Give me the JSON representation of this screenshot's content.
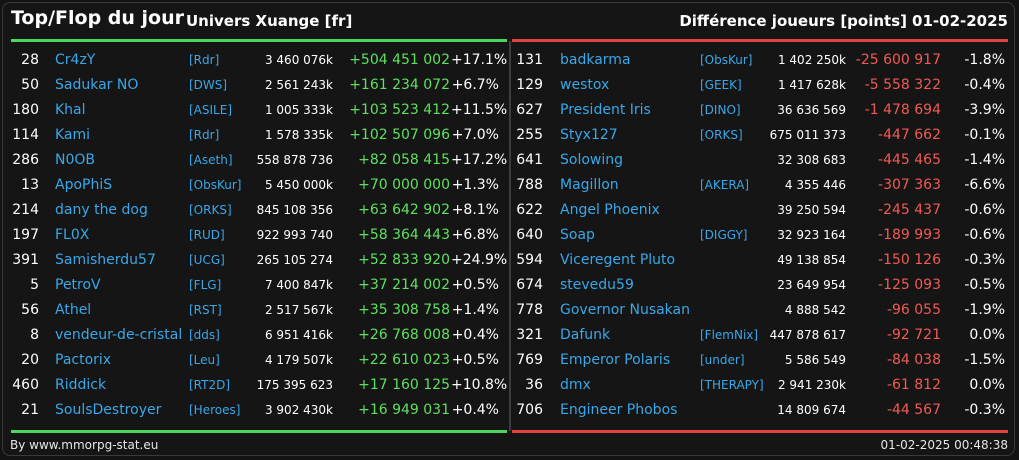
{
  "header": {
    "title": "Top/Flop du jour",
    "subtitle": "Univers Xuange [fr]",
    "metric": "Différence joueurs [points]",
    "date": "01-02-2025"
  },
  "colors": {
    "up": "#5ee05e",
    "down": "#f05a52",
    "name": "#39a7e8",
    "top_rule": "#4dd65b",
    "flop_rule": "#e0453f"
  },
  "top": [
    {
      "rank": "28",
      "name": "Cr4zY",
      "tag": "[Rdr]",
      "points": "3 460 076k",
      "diff": "+504 451 002",
      "pct": "+17.1%"
    },
    {
      "rank": "50",
      "name": "Sadukar NO",
      "tag": "[DWS]",
      "points": "2 561 243k",
      "diff": "+161 234 072",
      "pct": "+6.7%"
    },
    {
      "rank": "180",
      "name": "Khal",
      "tag": "[ASILE]",
      "points": "1 005 333k",
      "diff": "+103 523 412",
      "pct": "+11.5%"
    },
    {
      "rank": "114",
      "name": "Kami",
      "tag": "[Rdr]",
      "points": "1 578 335k",
      "diff": "+102 507 096",
      "pct": "+7.0%"
    },
    {
      "rank": "286",
      "name": "N0OB",
      "tag": "[Aseth]",
      "points": "558 878 736",
      "diff": "+82 058 415",
      "pct": "+17.2%"
    },
    {
      "rank": "13",
      "name": "ApoPhiS",
      "tag": "[ObsKur]",
      "points": "5 450 000k",
      "diff": "+70 000 000",
      "pct": "+1.3%"
    },
    {
      "rank": "214",
      "name": "dany the dog",
      "tag": "[ORKS]",
      "points": "845 108 356",
      "diff": "+63 642 902",
      "pct": "+8.1%"
    },
    {
      "rank": "197",
      "name": "FL0X",
      "tag": "[RUD]",
      "points": "922 993 740",
      "diff": "+58 364 443",
      "pct": "+6.8%"
    },
    {
      "rank": "391",
      "name": "Samisherdu57",
      "tag": "[UCG]",
      "points": "265 105 274",
      "diff": "+52 833 920",
      "pct": "+24.9%"
    },
    {
      "rank": "5",
      "name": "PetroV",
      "tag": "[FLG]",
      "points": "7 400 847k",
      "diff": "+37 214 002",
      "pct": "+0.5%"
    },
    {
      "rank": "56",
      "name": "Athel",
      "tag": "[RST]",
      "points": "2 517 567k",
      "diff": "+35 308 758",
      "pct": "+1.4%"
    },
    {
      "rank": "8",
      "name": "vendeur-de-cristal",
      "tag": "[dds]",
      "points": "6 951 416k",
      "diff": "+26 768 008",
      "pct": "+0.4%"
    },
    {
      "rank": "20",
      "name": "Pactorix",
      "tag": "[Leu]",
      "points": "4 179 507k",
      "diff": "+22 610 023",
      "pct": "+0.5%"
    },
    {
      "rank": "460",
      "name": "Riddick",
      "tag": "[RT2D]",
      "points": "175 395 623",
      "diff": "+17 160 125",
      "pct": "+10.8%"
    },
    {
      "rank": "21",
      "name": "SoulsDestroyer",
      "tag": "[Heroes]",
      "points": "3 902 430k",
      "diff": "+16 949 031",
      "pct": "+0.4%"
    }
  ],
  "flop": [
    {
      "rank": "131",
      "name": "badkarma",
      "tag": "[ObsKur]",
      "points": "1 402 250k",
      "diff": "-25 600 917",
      "pct": "-1.8%"
    },
    {
      "rank": "129",
      "name": "westox",
      "tag": "[GEEK]",
      "points": "1 417 628k",
      "diff": "-5 558 322",
      "pct": "-0.4%"
    },
    {
      "rank": "627",
      "name": "President Iris",
      "tag": "[DINO]",
      "points": "36 636 569",
      "diff": "-1 478 694",
      "pct": "-3.9%"
    },
    {
      "rank": "255",
      "name": "Styx127",
      "tag": "[ORKS]",
      "points": "675 011 373",
      "diff": "-447 662",
      "pct": "-0.1%"
    },
    {
      "rank": "641",
      "name": "Solowing",
      "tag": "",
      "points": "32 308 683",
      "diff": "-445 465",
      "pct": "-1.4%"
    },
    {
      "rank": "788",
      "name": "Magillon",
      "tag": "[AKERA]",
      "points": "4 355 446",
      "diff": "-307 363",
      "pct": "-6.6%"
    },
    {
      "rank": "622",
      "name": "Angel Phoenix",
      "tag": "",
      "points": "39 250 594",
      "diff": "-245 437",
      "pct": "-0.6%"
    },
    {
      "rank": "640",
      "name": "Soap",
      "tag": "[DIGGY]",
      "points": "32 923 164",
      "diff": "-189 993",
      "pct": "-0.6%"
    },
    {
      "rank": "594",
      "name": "Viceregent Pluto",
      "tag": "",
      "points": "49 138 854",
      "diff": "-150 126",
      "pct": "-0.3%"
    },
    {
      "rank": "674",
      "name": "stevedu59",
      "tag": "",
      "points": "23 649 954",
      "diff": "-125 093",
      "pct": "-0.5%"
    },
    {
      "rank": "778",
      "name": "Governor Nusakan",
      "tag": "",
      "points": "4 888 542",
      "diff": "-96 055",
      "pct": "-1.9%"
    },
    {
      "rank": "321",
      "name": "Dafunk",
      "tag": "[FlemNix]",
      "points": "447 878 617",
      "diff": "-92 721",
      "pct": "0.0%"
    },
    {
      "rank": "769",
      "name": "Emperor Polaris",
      "tag": "[under]",
      "points": "5 586 549",
      "diff": "-84 038",
      "pct": "-1.5%"
    },
    {
      "rank": "36",
      "name": "dmx",
      "tag": "[THERAPY]",
      "points": "2 941 230k",
      "diff": "-61 812",
      "pct": "0.0%"
    },
    {
      "rank": "706",
      "name": "Engineer Phobos",
      "tag": "",
      "points": "14 809 674",
      "diff": "-44 567",
      "pct": "-0.3%"
    }
  ],
  "footer": {
    "credit": "By www.mmorpg-stat.eu",
    "timestamp": "01-02-2025 00:48:38"
  }
}
